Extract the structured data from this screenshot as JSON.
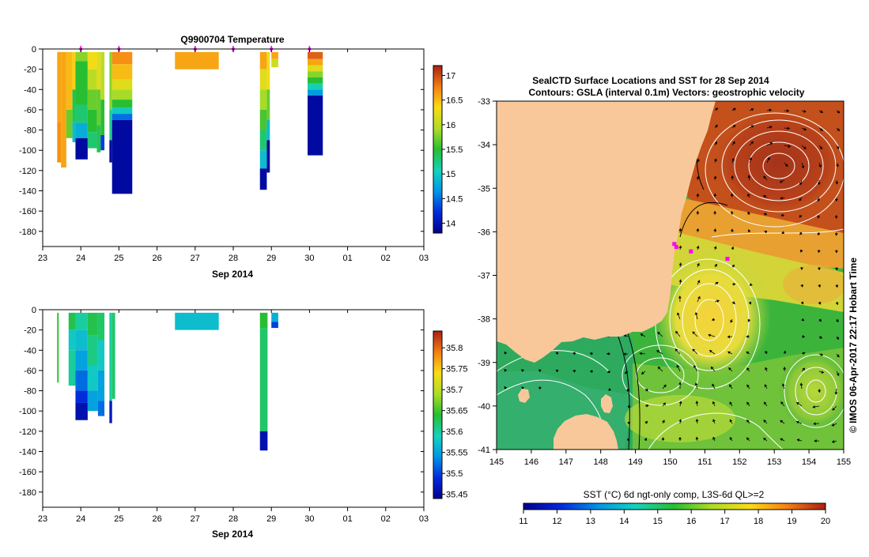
{
  "chart_data": [
    {
      "type": "heatmap",
      "title": "Q9900704  Temperature",
      "xlabel": "Sep 2014",
      "xlim": [
        23,
        33
      ],
      "ylim": [
        -195,
        0
      ],
      "x_tick_labels": [
        "23",
        "24",
        "25",
        "26",
        "27",
        "28",
        "29",
        "30",
        "01",
        "02",
        "03"
      ],
      "y_ticks": [
        0,
        -20,
        -40,
        -60,
        -80,
        -100,
        -120,
        -140,
        -160,
        -180
      ],
      "colorbar": {
        "min": 13.8,
        "max": 17.2,
        "ticks": [
          14,
          14.5,
          15,
          15.5,
          16,
          16.5,
          17
        ],
        "tick_labels": [
          "14",
          "14.5",
          "15",
          "15.5",
          "16",
          "16.5",
          "17"
        ]
      },
      "profile_markers": [
        24.0,
        25.0,
        27.0,
        28.0,
        29.0,
        30.0
      ],
      "profiles": [
        {
          "t0": 23.38,
          "t1": 23.48,
          "segs": [
            {
              "z0": -3,
              "z1": -72,
              "v": 16.6
            },
            {
              "z0": -72,
              "z1": -112,
              "v": 16.7
            }
          ]
        },
        {
          "t0": 23.48,
          "t1": 23.62,
          "segs": [
            {
              "z0": -3,
              "z1": -117,
              "v": 16.6
            }
          ]
        },
        {
          "t0": 23.62,
          "t1": 23.78,
          "segs": [
            {
              "z0": -3,
              "z1": -60,
              "v": 16.5
            },
            {
              "z0": -60,
              "z1": -88,
              "v": 15.7
            }
          ]
        },
        {
          "t0": 23.78,
          "t1": 23.86,
          "segs": [
            {
              "z0": -3,
              "z1": -40,
              "v": 16.4
            },
            {
              "z0": -40,
              "z1": -72,
              "v": 15.4
            },
            {
              "z0": -72,
              "z1": -92,
              "v": 14.9
            }
          ]
        },
        {
          "t0": 23.86,
          "t1": 24.18,
          "segs": [
            {
              "z0": -3,
              "z1": -12,
              "v": 15.8
            },
            {
              "z0": -12,
              "z1": -55,
              "v": 15.5
            },
            {
              "z0": -55,
              "z1": -73,
              "v": 15.3
            },
            {
              "z0": -73,
              "z1": -88,
              "v": 14.8
            },
            {
              "z0": -88,
              "z1": -109,
              "v": 13.9
            }
          ]
        },
        {
          "t0": 24.18,
          "t1": 24.42,
          "segs": [
            {
              "z0": -3,
              "z1": -20,
              "v": 16.3
            },
            {
              "z0": -20,
              "z1": -40,
              "v": 16.0
            },
            {
              "z0": -40,
              "z1": -60,
              "v": 15.7
            },
            {
              "z0": -60,
              "z1": -82,
              "v": 15.5
            },
            {
              "z0": -82,
              "z1": -98,
              "v": 15.3
            }
          ]
        },
        {
          "t0": 24.42,
          "t1": 24.52,
          "segs": [
            {
              "z0": -3,
              "z1": -40,
              "v": 16.2
            },
            {
              "z0": -40,
              "z1": -75,
              "v": 15.7
            },
            {
              "z0": -75,
              "z1": -102,
              "v": 15.4
            }
          ]
        },
        {
          "t0": 24.52,
          "t1": 24.62,
          "segs": [
            {
              "z0": -3,
              "z1": -50,
              "v": 16.0
            },
            {
              "z0": -50,
              "z1": -85,
              "v": 15.5
            },
            {
              "z0": -85,
              "z1": -100,
              "v": 14.3
            }
          ]
        },
        {
          "t0": 24.75,
          "t1": 24.82,
          "segs": [
            {
              "z0": -3,
              "z1": -60,
              "v": 15.8
            },
            {
              "z0": -60,
              "z1": -90,
              "v": 15.2
            },
            {
              "z0": -90,
              "z1": -112,
              "v": 13.9
            }
          ]
        },
        {
          "t0": 24.82,
          "t1": 25.35,
          "segs": [
            {
              "z0": -3,
              "z1": -15,
              "v": 16.7
            },
            {
              "z0": -15,
              "z1": -30,
              "v": 16.5
            },
            {
              "z0": -30,
              "z1": -40,
              "v": 16.2
            },
            {
              "z0": -40,
              "z1": -50,
              "v": 15.9
            },
            {
              "z0": -50,
              "z1": -58,
              "v": 15.5
            },
            {
              "z0": -58,
              "z1": -64,
              "v": 15.0
            },
            {
              "z0": -64,
              "z1": -70,
              "v": 14.5
            },
            {
              "z0": -70,
              "z1": -143,
              "v": 13.9
            }
          ]
        },
        {
          "t0": 26.47,
          "t1": 27.62,
          "segs": [
            {
              "z0": -3,
              "z1": -20,
              "v": 16.6
            }
          ]
        },
        {
          "t0": 28.7,
          "t1": 28.88,
          "segs": [
            {
              "z0": -3,
              "z1": -20,
              "v": 16.6
            },
            {
              "z0": -20,
              "z1": -40,
              "v": 16.2
            },
            {
              "z0": -40,
              "z1": -60,
              "v": 15.9
            },
            {
              "z0": -60,
              "z1": -80,
              "v": 15.6
            },
            {
              "z0": -80,
              "z1": -100,
              "v": 15.3
            },
            {
              "z0": -100,
              "z1": -118,
              "v": 14.9
            },
            {
              "z0": -118,
              "z1": -139,
              "v": 13.9
            }
          ]
        },
        {
          "t0": 28.88,
          "t1": 28.96,
          "segs": [
            {
              "z0": -3,
              "z1": -40,
              "v": 16.3
            },
            {
              "z0": -40,
              "z1": -70,
              "v": 15.7
            },
            {
              "z0": -70,
              "z1": -90,
              "v": 14.9
            },
            {
              "z0": -90,
              "z1": -122,
              "v": 13.9
            }
          ]
        },
        {
          "t0": 29.0,
          "t1": 29.18,
          "segs": [
            {
              "z0": -3,
              "z1": -10,
              "v": 16.6
            },
            {
              "z0": -10,
              "z1": -18,
              "v": 16.1
            }
          ]
        },
        {
          "t0": 29.95,
          "t1": 30.35,
          "segs": [
            {
              "z0": -3,
              "z1": -10,
              "v": 16.9
            },
            {
              "z0": -10,
              "z1": -16,
              "v": 16.6
            },
            {
              "z0": -16,
              "z1": -22,
              "v": 16.2
            },
            {
              "z0": -22,
              "z1": -28,
              "v": 15.8
            },
            {
              "z0": -28,
              "z1": -34,
              "v": 15.5
            },
            {
              "z0": -34,
              "z1": -40,
              "v": 15.1
            },
            {
              "z0": -40,
              "z1": -46,
              "v": 14.7
            },
            {
              "z0": -46,
              "z1": -105,
              "v": 13.9
            }
          ]
        }
      ]
    },
    {
      "type": "heatmap",
      "xlabel": "Sep 2014",
      "xlim": [
        23,
        33
      ],
      "ylim": [
        -195,
        0
      ],
      "x_tick_labels": [
        "23",
        "24",
        "25",
        "26",
        "27",
        "28",
        "29",
        "30",
        "01",
        "02",
        "03"
      ],
      "y_ticks": [
        0,
        -20,
        -40,
        -60,
        -80,
        -100,
        -120,
        -140,
        -160,
        -180
      ],
      "colorbar": {
        "min": 35.44,
        "max": 35.84,
        "ticks": [
          35.45,
          35.5,
          35.55,
          35.6,
          35.65,
          35.7,
          35.75,
          35.8
        ],
        "tick_labels": [
          "35.45",
          "35.5",
          "35.55",
          "35.6",
          "35.65",
          "35.7",
          "35.75",
          "35.8"
        ]
      },
      "profiles": [
        {
          "t0": 23.38,
          "t1": 23.42,
          "segs": [
            {
              "z0": -3,
              "z1": -72,
              "v": 35.64
            }
          ]
        },
        {
          "t0": 23.68,
          "t1": 23.86,
          "segs": [
            {
              "z0": -3,
              "z1": -20,
              "v": 35.63
            },
            {
              "z0": -20,
              "z1": -40,
              "v": 35.58
            },
            {
              "z0": -40,
              "z1": -75,
              "v": 35.6
            }
          ]
        },
        {
          "t0": 23.86,
          "t1": 24.18,
          "segs": [
            {
              "z0": -3,
              "z1": -20,
              "v": 35.6
            },
            {
              "z0": -20,
              "z1": -40,
              "v": 35.57
            },
            {
              "z0": -40,
              "z1": -60,
              "v": 35.55
            },
            {
              "z0": -60,
              "z1": -80,
              "v": 35.52
            },
            {
              "z0": -80,
              "z1": -92,
              "v": 35.49
            },
            {
              "z0": -92,
              "z1": -109,
              "v": 35.46
            }
          ]
        },
        {
          "t0": 24.18,
          "t1": 24.45,
          "segs": [
            {
              "z0": -3,
              "z1": -25,
              "v": 35.63
            },
            {
              "z0": -25,
              "z1": -55,
              "v": 35.61
            },
            {
              "z0": -55,
              "z1": -80,
              "v": 35.58
            },
            {
              "z0": -80,
              "z1": -100,
              "v": 35.55
            }
          ]
        },
        {
          "t0": 24.45,
          "t1": 24.62,
          "segs": [
            {
              "z0": -3,
              "z1": -30,
              "v": 35.62
            },
            {
              "z0": -30,
              "z1": -60,
              "v": 35.58
            },
            {
              "z0": -60,
              "z1": -90,
              "v": 35.55
            },
            {
              "z0": -90,
              "z1": -105,
              "v": 35.52
            }
          ]
        },
        {
          "t0": 24.75,
          "t1": 24.82,
          "segs": [
            {
              "z0": -3,
              "z1": -90,
              "v": 35.6
            },
            {
              "z0": -90,
              "z1": -112,
              "v": 35.47
            }
          ]
        },
        {
          "t0": 24.82,
          "t1": 24.9,
          "segs": [
            {
              "z0": -3,
              "z1": -88,
              "v": 35.62
            }
          ]
        },
        {
          "t0": 26.47,
          "t1": 27.62,
          "segs": [
            {
              "z0": -3,
              "z1": -20,
              "v": 35.57
            }
          ]
        },
        {
          "t0": 28.7,
          "t1": 28.9,
          "segs": [
            {
              "z0": -3,
              "z1": -18,
              "v": 35.64
            },
            {
              "z0": -18,
              "z1": -120,
              "v": 35.62
            },
            {
              "z0": -120,
              "z1": -139,
              "v": 35.46
            }
          ]
        },
        {
          "t0": 29.0,
          "t1": 29.18,
          "segs": [
            {
              "z0": -3,
              "z1": -12,
              "v": 35.56
            },
            {
              "z0": -12,
              "z1": -18,
              "v": 35.5
            }
          ]
        }
      ]
    },
    {
      "type": "heatmap",
      "title": "SealCTD Surface Locations and SST for 28 Sep 2014",
      "subtitle": "Contours: GSLA (interval 0.1m) Vectors: geostrophic velocity",
      "colorbar_label": "SST (°C) 6d ngt-only comp, L3S-6d QL>=2",
      "side_label": "© IMOS 06-Apr-2017 22:17 Hobart Time",
      "xlim": [
        145,
        155
      ],
      "ylim": [
        -41,
        -33
      ],
      "x_tick_labels": [
        "145",
        "146",
        "147",
        "148",
        "149",
        "150",
        "151",
        "152",
        "153",
        "154",
        "155"
      ],
      "y_tick_labels": [
        "-33",
        "-34",
        "-35",
        "-36",
        "-37",
        "-38",
        "-39",
        "-40",
        "-41"
      ],
      "colorbar": {
        "min": 11,
        "max": 20,
        "tick_labels": [
          "11",
          "12",
          "13",
          "14",
          "15",
          "16",
          "17",
          "18",
          "19",
          "20"
        ]
      },
      "colors": {
        "land": "#f8c89a",
        "marker": "#ff00ff",
        "contour": "#ffffff",
        "vector": "#000000"
      },
      "seal_locations": [
        {
          "lon": 150.12,
          "lat": -36.28
        },
        {
          "lon": 150.18,
          "lat": -36.35
        },
        {
          "lon": 150.6,
          "lat": -36.45
        },
        {
          "lon": 151.65,
          "lat": -36.62
        }
      ]
    }
  ]
}
